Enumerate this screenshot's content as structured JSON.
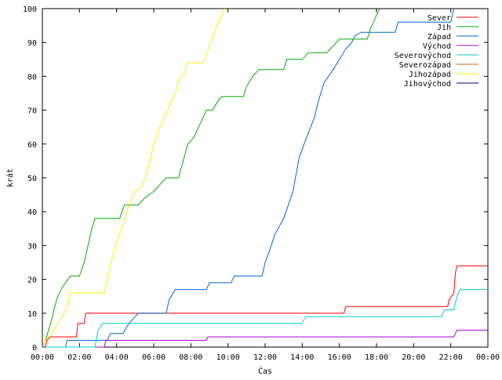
{
  "chart_data": {
    "type": "line",
    "xlabel": "Čas",
    "ylabel": "krát",
    "xlim": [
      "00:00",
      "24:00"
    ],
    "ylim": [
      0,
      100
    ],
    "x_ticks": [
      "00:00",
      "02:00",
      "04:00",
      "06:00",
      "08:00",
      "10:00",
      "12:00",
      "14:00",
      "16:00",
      "18:00",
      "20:00",
      "22:00",
      "00:00"
    ],
    "y_ticks": [
      "0",
      "10",
      "20",
      "30",
      "40",
      "50",
      "60",
      "70",
      "80",
      "90",
      "100"
    ],
    "grid": false,
    "legend_position": "top-right",
    "series": [
      {
        "name": "Sever",
        "color": "#ff0000",
        "points": [
          [
            "00:10",
            0
          ],
          [
            "00:15",
            2
          ],
          [
            "00:25",
            3
          ],
          [
            "01:50",
            3
          ],
          [
            "01:55",
            7
          ],
          [
            "02:15",
            7
          ],
          [
            "02:20",
            10
          ],
          [
            "16:15",
            10
          ],
          [
            "16:20",
            12
          ],
          [
            "21:50",
            12
          ],
          [
            "21:55",
            14
          ],
          [
            "22:10",
            16
          ],
          [
            "22:15",
            22
          ],
          [
            "22:20",
            24
          ],
          [
            "24:00",
            24
          ]
        ]
      },
      {
        "name": "Jih",
        "color": "#00aa00",
        "points": [
          [
            "00:00",
            0
          ],
          [
            "00:10",
            2
          ],
          [
            "00:20",
            5
          ],
          [
            "00:30",
            8
          ],
          [
            "00:40",
            12
          ],
          [
            "00:50",
            15
          ],
          [
            "01:00",
            17
          ],
          [
            "01:15",
            19
          ],
          [
            "01:30",
            21
          ],
          [
            "02:00",
            21
          ],
          [
            "02:15",
            25
          ],
          [
            "02:30",
            31
          ],
          [
            "02:40",
            35
          ],
          [
            "02:50",
            38
          ],
          [
            "04:10",
            38
          ],
          [
            "04:25",
            42
          ],
          [
            "05:10",
            42
          ],
          [
            "05:30",
            44
          ],
          [
            "06:00",
            46
          ],
          [
            "06:20",
            48
          ],
          [
            "06:40",
            50
          ],
          [
            "07:20",
            50
          ],
          [
            "07:35",
            55
          ],
          [
            "07:50",
            60
          ],
          [
            "08:10",
            62
          ],
          [
            "08:30",
            66
          ],
          [
            "08:50",
            70
          ],
          [
            "09:10",
            70
          ],
          [
            "09:30",
            73
          ],
          [
            "09:40",
            74
          ],
          [
            "10:50",
            74
          ],
          [
            "11:00",
            77
          ],
          [
            "11:20",
            80
          ],
          [
            "11:40",
            82
          ],
          [
            "13:00",
            82
          ],
          [
            "13:10",
            85
          ],
          [
            "14:00",
            85
          ],
          [
            "14:20",
            87
          ],
          [
            "15:20",
            87
          ],
          [
            "15:40",
            89
          ],
          [
            "16:00",
            91
          ],
          [
            "17:30",
            91
          ],
          [
            "17:40",
            94
          ],
          [
            "18:00",
            98
          ],
          [
            "18:10",
            100
          ]
        ]
      },
      {
        "name": "Západ",
        "color": "#0066cc",
        "points": [
          [
            "00:00",
            0
          ],
          [
            "01:15",
            0
          ],
          [
            "01:20",
            2
          ],
          [
            "03:30",
            2
          ],
          [
            "03:40",
            4
          ],
          [
            "04:20",
            4
          ],
          [
            "04:40",
            7
          ],
          [
            "05:00",
            9
          ],
          [
            "05:10",
            10
          ],
          [
            "06:40",
            10
          ],
          [
            "06:50",
            14
          ],
          [
            "07:10",
            17
          ],
          [
            "08:50",
            17
          ],
          [
            "09:00",
            19
          ],
          [
            "10:10",
            19
          ],
          [
            "10:20",
            21
          ],
          [
            "11:50",
            21
          ],
          [
            "12:00",
            25
          ],
          [
            "12:20",
            30
          ],
          [
            "12:30",
            33
          ],
          [
            "13:00",
            38
          ],
          [
            "13:30",
            46
          ],
          [
            "13:50",
            56
          ],
          [
            "14:10",
            61
          ],
          [
            "14:40",
            68
          ],
          [
            "14:50",
            72
          ],
          [
            "15:10",
            78
          ],
          [
            "15:40",
            82
          ],
          [
            "16:00",
            85
          ],
          [
            "16:20",
            88
          ],
          [
            "16:40",
            90
          ],
          [
            "16:50",
            92
          ],
          [
            "17:10",
            93
          ],
          [
            "19:00",
            93
          ],
          [
            "19:10",
            96
          ],
          [
            "22:00",
            96
          ],
          [
            "22:10",
            100
          ]
        ]
      },
      {
        "name": "Východ",
        "color": "#aa00cc",
        "points": [
          [
            "00:00",
            0
          ],
          [
            "03:20",
            0
          ],
          [
            "03:25",
            2
          ],
          [
            "08:50",
            2
          ],
          [
            "08:55",
            3
          ],
          [
            "22:10",
            3
          ],
          [
            "22:20",
            5
          ],
          [
            "24:00",
            5
          ]
        ]
      },
      {
        "name": "Severovýchod",
        "color": "#00cccc",
        "points": [
          [
            "00:00",
            0
          ],
          [
            "02:50",
            0
          ],
          [
            "03:00",
            5
          ],
          [
            "03:15",
            7
          ],
          [
            "14:00",
            7
          ],
          [
            "14:10",
            9
          ],
          [
            "21:30",
            9
          ],
          [
            "21:40",
            11
          ],
          [
            "22:10",
            11
          ],
          [
            "22:20",
            15
          ],
          [
            "22:30",
            17
          ],
          [
            "24:00",
            17
          ]
        ]
      },
      {
        "name": "Severozápad",
        "color": "#cc6600",
        "points": [
          [
            "00:00",
            0
          ],
          [
            "00:10",
            0
          ]
        ]
      },
      {
        "name": "Jihozápad",
        "color": "#ffee00",
        "points": [
          [
            "00:00",
            0
          ],
          [
            "00:10",
            2
          ],
          [
            "00:30",
            4
          ],
          [
            "00:50",
            7
          ],
          [
            "01:10",
            10
          ],
          [
            "01:20",
            12
          ],
          [
            "01:30",
            16
          ],
          [
            "03:20",
            16
          ],
          [
            "03:30",
            20
          ],
          [
            "03:45",
            26
          ],
          [
            "04:00",
            31
          ],
          [
            "04:20",
            36
          ],
          [
            "04:40",
            42
          ],
          [
            "05:00",
            46
          ],
          [
            "05:20",
            47
          ],
          [
            "05:40",
            52
          ],
          [
            "06:00",
            60
          ],
          [
            "06:20",
            65
          ],
          [
            "06:40",
            69
          ],
          [
            "06:50",
            71
          ],
          [
            "07:10",
            75
          ],
          [
            "07:20",
            79
          ],
          [
            "07:40",
            81
          ],
          [
            "07:50",
            84
          ],
          [
            "08:40",
            84
          ],
          [
            "09:00",
            89
          ],
          [
            "09:20",
            94
          ],
          [
            "09:40",
            98
          ],
          [
            "09:50",
            100
          ]
        ]
      },
      {
        "name": "Jihovýchod",
        "color": "#000088",
        "points": [
          [
            "00:00",
            0
          ],
          [
            "00:10",
            0
          ]
        ]
      }
    ]
  }
}
